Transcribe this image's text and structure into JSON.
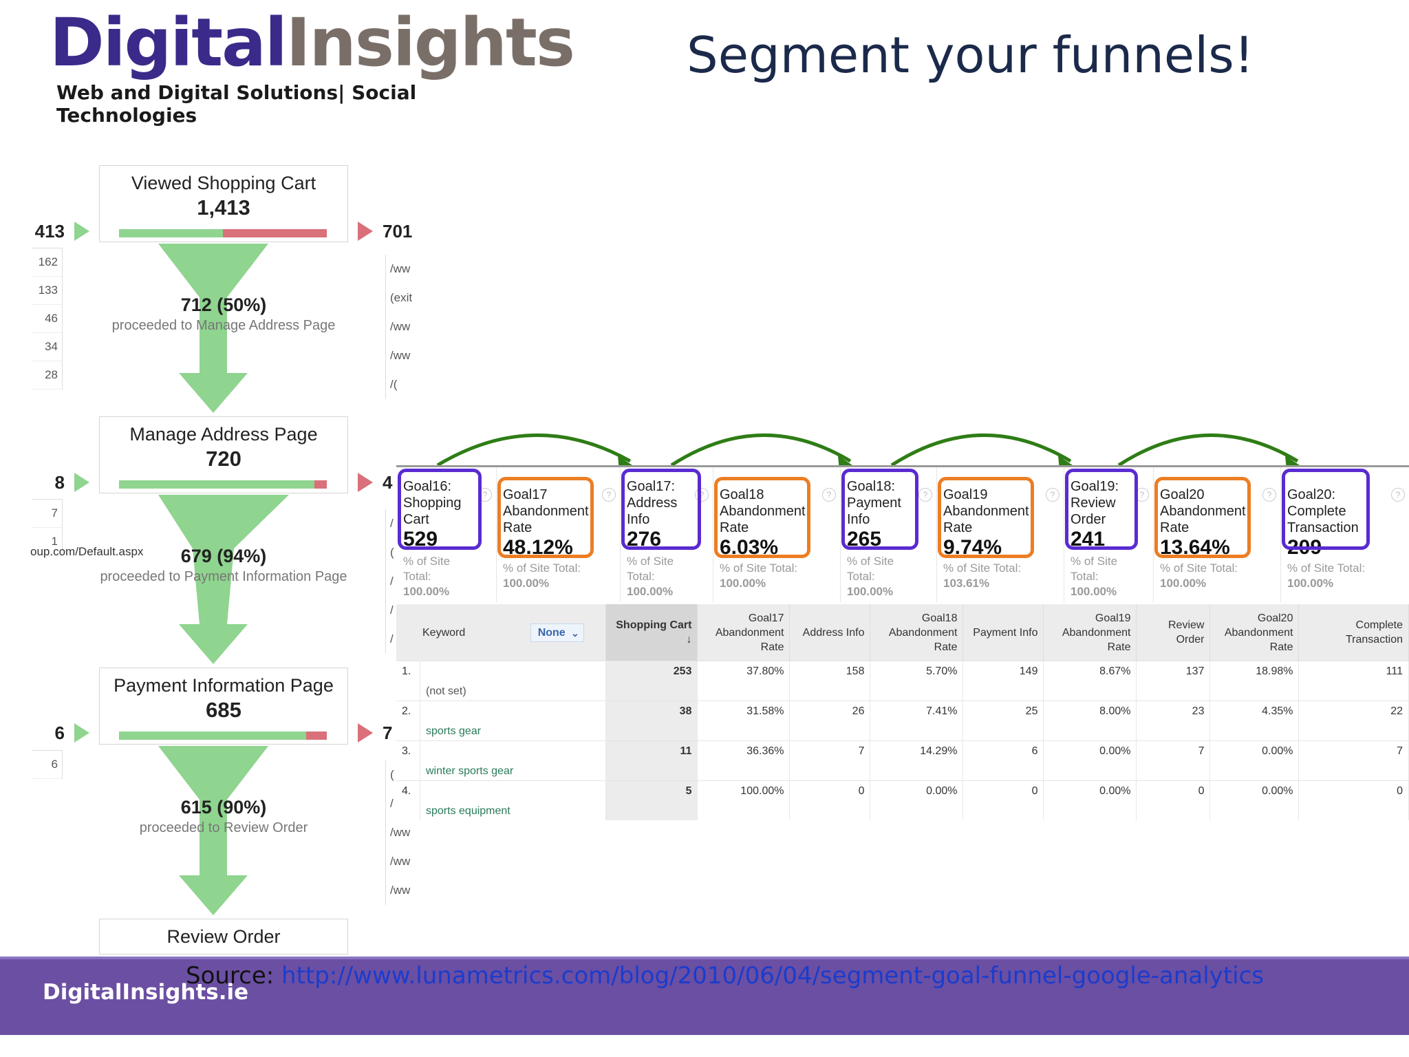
{
  "logo": {
    "part1": "Digital",
    "part2": "Insights",
    "tagline": "Web and Digital Solutions| Social Technologies"
  },
  "title": "Segment your funnels!",
  "funnel": [
    {
      "name": "Viewed Shopping Cart",
      "count": "1,413",
      "entrances": "413",
      "exits": "701",
      "bar_fill": 0.5,
      "sources": [
        "162",
        "133",
        "46",
        "34",
        "28"
      ],
      "exit_pages": [
        "/ww",
        "(exit",
        "/ww",
        "/ww",
        "/("
      ],
      "proceeded": "712 (50%)",
      "proceeded_label": "proceeded to Manage Address Page"
    },
    {
      "name": "Manage Address Page",
      "count": "720",
      "entrances": "8",
      "exits": "4",
      "bar_fill": 0.94,
      "sources": [
        "7",
        "1"
      ],
      "source_url": "oup.com/Default.aspx",
      "exit_pages": [
        "/",
        "(",
        "/",
        "/",
        "/"
      ],
      "proceeded": "679 (94%)",
      "proceeded_label": "proceeded to Payment Information Page"
    },
    {
      "name": "Payment Information Page",
      "count": "685",
      "entrances": "6",
      "exits": "7",
      "bar_fill": 0.9,
      "sources": [
        "6"
      ],
      "exit_pages": [
        "(",
        "/",
        "/ww",
        "/ww",
        "/ww"
      ],
      "proceeded": "615 (90%)",
      "proceeded_label": "proceeded to Review Order"
    },
    {
      "name": "Review Order"
    }
  ],
  "goals": [
    {
      "label": [
        "Goal16:",
        "Shopping",
        "Cart"
      ],
      "value": "529",
      "sub": [
        "% of Site",
        "Total:"
      ],
      "subval": "100.00%",
      "ring": "purple"
    },
    {
      "label": [
        "Goal17",
        "Abandonment",
        "Rate"
      ],
      "value": "48.12%",
      "sub": [
        "% of Site Total:"
      ],
      "subval": "100.00%",
      "ring": "orange"
    },
    {
      "label": [
        "Goal17:",
        "Address",
        "Info"
      ],
      "value": "276",
      "sub": [
        "% of Site",
        "Total:"
      ],
      "subval": "100.00%",
      "ring": "purple"
    },
    {
      "label": [
        "Goal18",
        "Abandonment",
        "Rate"
      ],
      "value": "6.03%",
      "sub": [
        "% of Site Total:"
      ],
      "subval": "100.00%",
      "ring": "orange"
    },
    {
      "label": [
        "Goal18:",
        "Payment",
        "Info"
      ],
      "value": "265",
      "sub": [
        "% of Site",
        "Total:"
      ],
      "subval": "100.00%",
      "ring": "purple"
    },
    {
      "label": [
        "Goal19",
        "Abandonment",
        "Rate"
      ],
      "value": "9.74%",
      "sub": [
        "% of Site Total:"
      ],
      "subval": "103.61%",
      "ring": "orange"
    },
    {
      "label": [
        "Goal19:",
        "Review",
        "Order"
      ],
      "value": "241",
      "sub": [
        "% of Site",
        "Total:"
      ],
      "subval": "100.00%",
      "ring": "purple"
    },
    {
      "label": [
        "Goal20",
        "Abandonment",
        "Rate"
      ],
      "value": "13.64%",
      "sub": [
        "% of Site Total:"
      ],
      "subval": "100.00%",
      "ring": "orange"
    },
    {
      "label": [
        "Goal20:",
        "Complete",
        "Transaction"
      ],
      "value": "209",
      "sub": [
        "% of Site Total:"
      ],
      "subval": "100.00%",
      "ring": "purple"
    }
  ],
  "table": {
    "keyword_header": "Keyword",
    "secondary_dimension": "None",
    "columns": [
      "Shopping Cart",
      "Goal17 Abandonment Rate",
      "Address Info",
      "Goal18 Abandonment Rate",
      "Payment Info",
      "Goal19 Abandonment Rate",
      "Review Order",
      "Goal20 Abandonment Rate",
      "Complete Transaction"
    ],
    "rows": [
      {
        "idx": "1.",
        "keyword": "(not set)",
        "cells": [
          "253",
          "37.80%",
          "158",
          "5.70%",
          "149",
          "8.67%",
          "137",
          "18.98%",
          "111"
        ]
      },
      {
        "idx": "2.",
        "keyword": "sports gear",
        "cells": [
          "38",
          "31.58%",
          "26",
          "7.41%",
          "25",
          "8.00%",
          "23",
          "4.35%",
          "22"
        ]
      },
      {
        "idx": "3.",
        "keyword": "winter sports gear",
        "cells": [
          "11",
          "36.36%",
          "7",
          "14.29%",
          "6",
          "0.00%",
          "7",
          "0.00%",
          "7"
        ]
      },
      {
        "idx": "4.",
        "keyword": "sports equipment",
        "cells": [
          "5",
          "100.00%",
          "0",
          "0.00%",
          "0",
          "0.00%",
          "0",
          "0.00%",
          "0"
        ]
      }
    ]
  },
  "footer": {
    "logo": "DigitalInsights.ie",
    "source_label": "Source:",
    "source_url": "http://www.lunametrics.com/blog/2010/06/04/segment-goal-funnel-google-analytics"
  },
  "colors": {
    "purple_ring": "#5a2bd1",
    "orange_ring": "#ec7d23",
    "funnel_green": "#8fd48f",
    "exit_red": "#d9707a",
    "footer_bg": "#6b4fa3",
    "arrow_green": "#2e7d16"
  }
}
